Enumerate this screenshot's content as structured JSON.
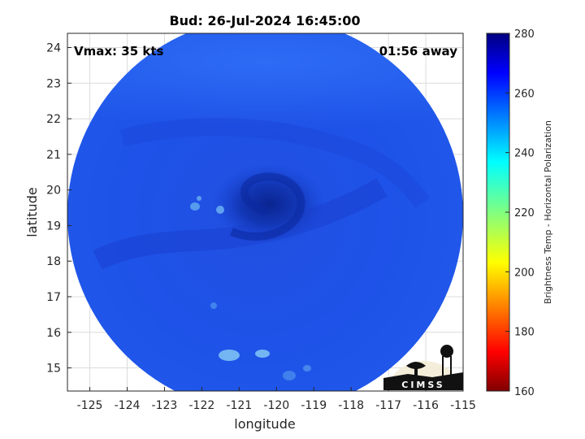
{
  "title": "Bud: 26-Jul-2024 16:45:00",
  "vmax_label": "Vmax: 35 kts",
  "time_away_label": "01:56 away",
  "xlabel": "longitude",
  "ylabel": "latitude",
  "colorbar_label": "Brightness Temp - Horizontal Polarization",
  "logo_text": "CIMSS",
  "x_ticks": [
    "-125",
    "-124",
    "-123",
    "-122",
    "-121",
    "-120",
    "-119",
    "-118",
    "-117",
    "-116",
    "-115"
  ],
  "y_ticks": [
    "15",
    "16",
    "17",
    "18",
    "19",
    "20",
    "21",
    "22",
    "23",
    "24"
  ],
  "colorbar_ticks": [
    "280",
    "260",
    "240",
    "220",
    "200",
    "180",
    "160"
  ],
  "map": {
    "xlim": [
      -125.6,
      -115
    ],
    "ylim": [
      14.35,
      24.4
    ],
    "swath_center": [
      -120.3,
      19.3
    ],
    "swath_radius_deg": 5.3,
    "storm_center": [
      -120.2,
      19.6
    ],
    "colorbar_range": [
      160,
      280
    ],
    "colormap": "jet",
    "grid": true,
    "background_tb_range": [
      255,
      265
    ]
  },
  "colors": {
    "swath_base": "#1f52e6",
    "storm_core": "#0d2fa8",
    "cool_spot": "#5fa8f0",
    "background": "#ffffff"
  }
}
